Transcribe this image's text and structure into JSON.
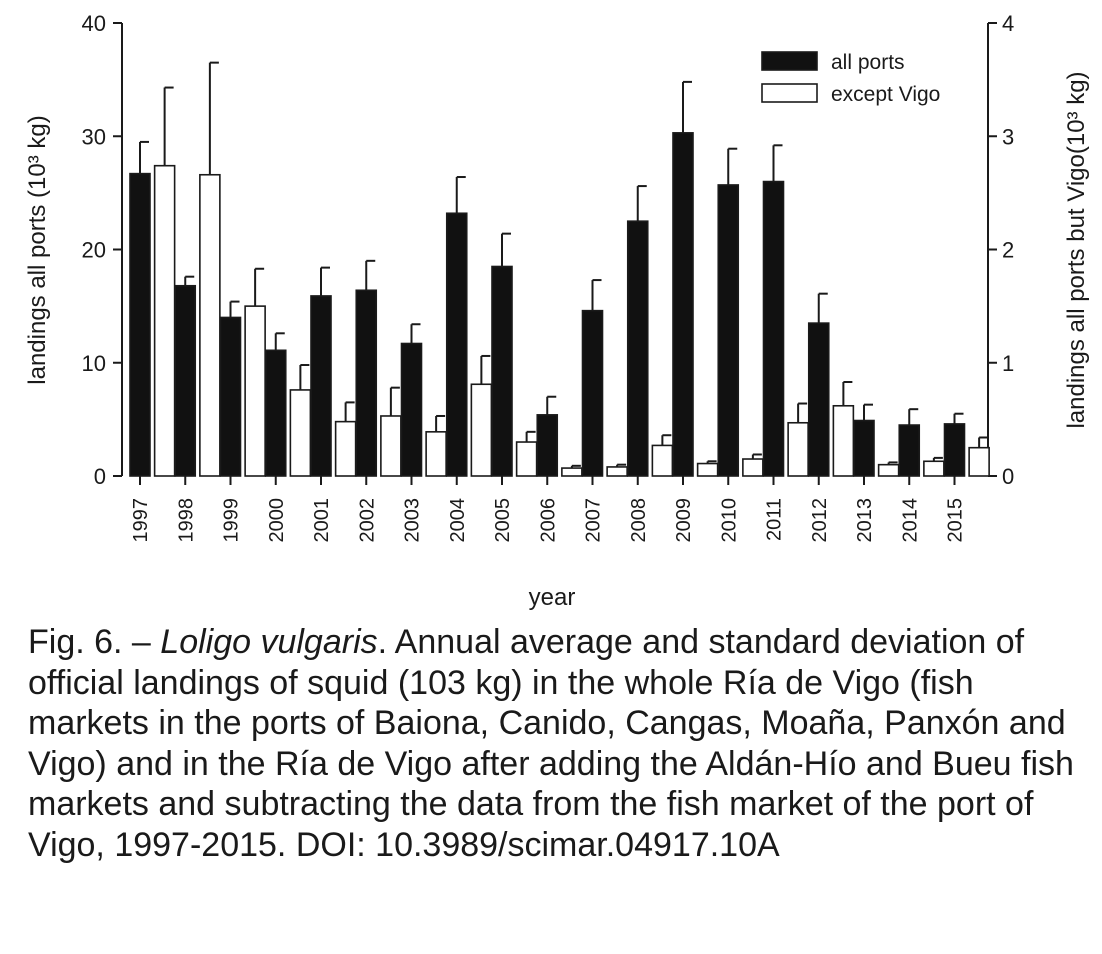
{
  "chart_data": {
    "type": "bar",
    "categories": [
      "1997",
      "1998",
      "1999",
      "2000",
      "2001",
      "2002",
      "2003",
      "2004",
      "2005",
      "2006",
      "2007",
      "2008",
      "2009",
      "2010",
      "2011",
      "2012",
      "2013",
      "2014",
      "2015"
    ],
    "series": [
      {
        "name": "all ports",
        "axis": "left",
        "color": "#111111",
        "values": [
          26.7,
          16.8,
          14.0,
          11.1,
          15.9,
          16.4,
          11.7,
          23.2,
          18.5,
          5.4,
          14.6,
          22.5,
          30.3,
          25.7,
          26.0,
          13.5,
          4.9,
          4.5,
          4.6
        ],
        "sd": [
          2.8,
          0.8,
          1.4,
          1.5,
          2.5,
          2.6,
          1.7,
          3.2,
          2.9,
          1.6,
          2.7,
          3.1,
          4.5,
          3.2,
          3.2,
          2.6,
          1.4,
          1.4,
          0.9
        ]
      },
      {
        "name": "except Vigo",
        "axis": "right",
        "color": "#ffffff",
        "values": [
          2.74,
          2.66,
          1.5,
          0.76,
          0.48,
          0.53,
          0.39,
          0.81,
          0.3,
          0.07,
          0.08,
          0.27,
          0.11,
          0.15,
          0.47,
          0.62,
          0.1,
          0.13,
          0.25
        ],
        "sd": [
          0.69,
          0.99,
          0.33,
          0.22,
          0.17,
          0.25,
          0.14,
          0.25,
          0.09,
          0.02,
          0.02,
          0.09,
          0.02,
          0.04,
          0.17,
          0.21,
          0.02,
          0.03,
          0.09
        ]
      }
    ],
    "ylabel": "landings all ports (10³ kg)",
    "ylabel_right": "landings all ports but Vigo(10³ kg)",
    "xlabel": "year",
    "ylim": [
      0,
      40
    ],
    "ylim_right": [
      0,
      4
    ],
    "yticks": [
      0,
      10,
      20,
      30,
      40
    ],
    "yticks_right": [
      0,
      1,
      2,
      3,
      4
    ],
    "legend_position": "top-right"
  },
  "caption": {
    "prefix": "Fig. 6. – ",
    "species": "Loligo vulgaris",
    "text": ". Annual average and standard deviation of official landings of squid (103 kg) in the whole Ría de Vigo (fish markets in the ports of Baiona, Canido, Cangas, Moaña, Panxón and Vigo) and in the Ría de Vigo after adding the Aldán-Hío and Bueu fish markets and subtracting the data from the fish market of the port of Vigo, 1997-2015. DOI: 10.3989/scimar.04917.10A"
  }
}
